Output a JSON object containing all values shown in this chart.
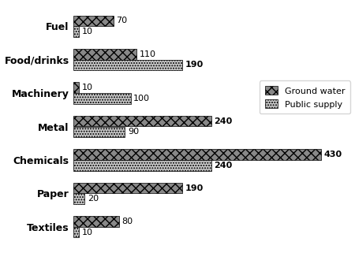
{
  "categories": [
    "Fuel",
    "Food/drinks",
    "Machinery",
    "Metal",
    "Chemicals",
    "Paper",
    "Textiles"
  ],
  "ground_water": [
    70,
    110,
    10,
    240,
    430,
    190,
    80
  ],
  "public_supply": [
    10,
    190,
    100,
    90,
    240,
    20,
    10
  ],
  "ground_water_color": "#888888",
  "public_supply_color": "#cccccc",
  "ground_water_hatch": "xxx",
  "public_supply_hatch": ".....",
  "bar_height": 0.32,
  "xlim": [
    0,
    480
  ],
  "legend_labels": [
    "Ground water",
    "Public supply"
  ],
  "label_fontsize": 8,
  "category_fontsize": 9,
  "value_fontsize": 8,
  "bold_threshold": 190
}
